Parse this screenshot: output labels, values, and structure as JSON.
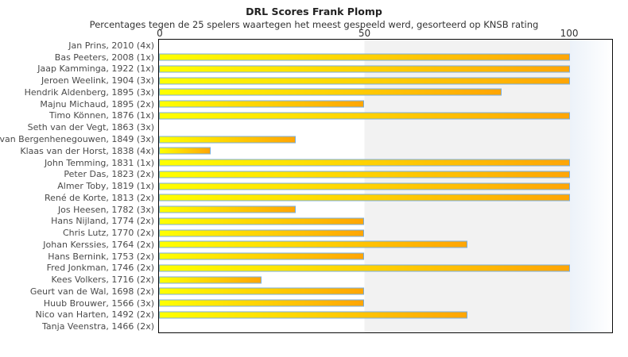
{
  "title": "DRL Scores Frank Plomp",
  "subtitle": "Percentages tegen de 25 spelers waartegen het meest gespeeld werd, gesorteerd op KNSB rating",
  "chart_data": {
    "type": "bar",
    "orientation": "horizontal",
    "title": "DRL Scores Frank Plomp",
    "subtitle": "Percentages tegen de 25 spelers waartegen het meest gespeeld werd, gesorteerd op KNSB rating",
    "xlabel": "",
    "ylabel": "",
    "xticks": [
      0,
      50,
      100
    ],
    "xlim": [
      0,
      110
    ],
    "grid": false,
    "legend": "none",
    "background_bands": [
      {
        "from": 0,
        "to": 50,
        "color": "#ffffff"
      },
      {
        "from": 50,
        "to": 100,
        "color": "#f2f2f2"
      },
      {
        "from": 100,
        "to": 110,
        "color": "gradient #ecf2f9 to #ffffff"
      }
    ],
    "categories": [
      "Jan Prins, 2010 (4x)",
      "Bas Peeters, 2008 (1x)",
      "Jaap Kamminga, 1922 (1x)",
      "Jeroen Weelink, 1904 (3x)",
      "Hendrik Aldenberg, 1895 (3x)",
      "Majnu Michaud, 1895 (2x)",
      "Timo Können, 1876 (1x)",
      "Seth van der Vegt, 1863 (3x)",
      "van Bergenhenegouwen, 1849 (3x)",
      "Klaas van der Horst, 1838 (4x)",
      "John Temming, 1831 (1x)",
      "Peter Das, 1823 (2x)",
      "Almer Toby, 1819 (1x)",
      "René de Korte, 1813 (2x)",
      "Jos Heesen, 1782 (3x)",
      "Hans Nijland, 1774 (2x)",
      "Chris Lutz, 1770 (2x)",
      "Johan Kerssies, 1764 (2x)",
      "Hans Bernink, 1753 (2x)",
      "Fred Jonkman, 1746 (2x)",
      "Kees Volkers, 1716 (2x)",
      "Geurt van de Wal, 1698 (2x)",
      "Huub Brouwer, 1566 (3x)",
      "Nico van Harten, 1492 (2x)",
      "Tanja Veenstra, 1466 (2x)"
    ],
    "values": [
      0,
      100,
      100,
      100,
      83.3,
      50,
      100,
      0,
      33.3,
      12.5,
      100,
      100,
      100,
      100,
      33.3,
      50,
      50,
      75,
      50,
      100,
      25,
      50,
      50,
      75,
      0
    ],
    "colors": {
      "bar_gradient_start": "#ffff00",
      "bar_gradient_end": "#ffa505",
      "bar_border": "#79aede",
      "mid_band": "#f2f2f2",
      "right_band": "#ecf2f9",
      "plot_border": "#0a0a0a"
    }
  }
}
